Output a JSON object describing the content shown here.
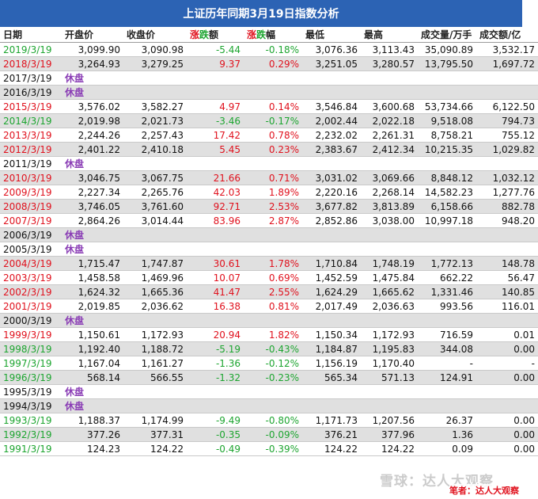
{
  "title": "上证历年同期3月19日指数分析",
  "columns": [
    "日期",
    "开盘价",
    "收盘价",
    "涨跌额",
    "涨跌幅",
    "最低",
    "最高",
    "成交量/万手",
    "成交额/亿"
  ],
  "suspend_label": "休盘",
  "author": "笔者：达人大观察",
  "watermark": "雪球：达人大观察",
  "rows": [
    {
      "date": "2019/3/19",
      "open": "3,099.90",
      "close": "3,090.98",
      "chg": "-5.44",
      "pct": "-0.18%",
      "low": "3,076.36",
      "high": "3,113.43",
      "vol": "35,090.89",
      "amt": "3,532.17",
      "dir": "down"
    },
    {
      "date": "2018/3/19",
      "open": "3,264.93",
      "close": "3,279.25",
      "chg": "9.37",
      "pct": "0.29%",
      "low": "3,251.05",
      "high": "3,280.57",
      "vol": "13,795.50",
      "amt": "1,697.72",
      "dir": "up"
    },
    {
      "date": "2017/3/19",
      "suspend": true
    },
    {
      "date": "2016/3/19",
      "suspend": true
    },
    {
      "date": "2015/3/19",
      "open": "3,576.02",
      "close": "3,582.27",
      "chg": "4.97",
      "pct": "0.14%",
      "low": "3,546.84",
      "high": "3,600.68",
      "vol": "53,734.66",
      "amt": "6,122.50",
      "dir": "up"
    },
    {
      "date": "2014/3/19",
      "open": "2,019.98",
      "close": "2,021.73",
      "chg": "-3.46",
      "pct": "-0.17%",
      "low": "2,002.44",
      "high": "2,022.18",
      "vol": "9,518.08",
      "amt": "794.73",
      "dir": "down"
    },
    {
      "date": "2013/3/19",
      "open": "2,244.26",
      "close": "2,257.43",
      "chg": "17.42",
      "pct": "0.78%",
      "low": "2,232.02",
      "high": "2,261.31",
      "vol": "8,758.21",
      "amt": "755.12",
      "dir": "up"
    },
    {
      "date": "2012/3/19",
      "open": "2,401.22",
      "close": "2,410.18",
      "chg": "5.45",
      "pct": "0.23%",
      "low": "2,383.67",
      "high": "2,412.34",
      "vol": "10,215.35",
      "amt": "1,029.82",
      "dir": "up"
    },
    {
      "date": "2011/3/19",
      "suspend": true
    },
    {
      "date": "2010/3/19",
      "open": "3,046.75",
      "close": "3,067.75",
      "chg": "21.66",
      "pct": "0.71%",
      "low": "3,031.02",
      "high": "3,069.66",
      "vol": "8,848.12",
      "amt": "1,032.12",
      "dir": "up"
    },
    {
      "date": "2009/3/19",
      "open": "2,227.34",
      "close": "2,265.76",
      "chg": "42.03",
      "pct": "1.89%",
      "low": "2,220.16",
      "high": "2,268.14",
      "vol": "14,582.23",
      "amt": "1,277.76",
      "dir": "up"
    },
    {
      "date": "2008/3/19",
      "open": "3,746.05",
      "close": "3,761.60",
      "chg": "92.71",
      "pct": "2.53%",
      "low": "3,677.82",
      "high": "3,813.89",
      "vol": "6,158.66",
      "amt": "882.78",
      "dir": "up"
    },
    {
      "date": "2007/3/19",
      "open": "2,864.26",
      "close": "3,014.44",
      "chg": "83.96",
      "pct": "2.87%",
      "low": "2,852.86",
      "high": "3,038.00",
      "vol": "10,997.18",
      "amt": "948.20",
      "dir": "up"
    },
    {
      "date": "2006/3/19",
      "suspend": true
    },
    {
      "date": "2005/3/19",
      "suspend": true
    },
    {
      "date": "2004/3/19",
      "open": "1,715.47",
      "close": "1,747.87",
      "chg": "30.61",
      "pct": "1.78%",
      "low": "1,710.84",
      "high": "1,748.19",
      "vol": "1,772.13",
      "amt": "148.78",
      "dir": "up"
    },
    {
      "date": "2003/3/19",
      "open": "1,458.58",
      "close": "1,469.96",
      "chg": "10.07",
      "pct": "0.69%",
      "low": "1,452.59",
      "high": "1,475.84",
      "vol": "662.22",
      "amt": "56.47",
      "dir": "up"
    },
    {
      "date": "2002/3/19",
      "open": "1,624.32",
      "close": "1,665.36",
      "chg": "41.47",
      "pct": "2.55%",
      "low": "1,624.29",
      "high": "1,665.62",
      "vol": "1,331.46",
      "amt": "140.85",
      "dir": "up"
    },
    {
      "date": "2001/3/19",
      "open": "2,019.85",
      "close": "2,036.62",
      "chg": "16.38",
      "pct": "0.81%",
      "low": "2,017.49",
      "high": "2,036.63",
      "vol": "993.56",
      "amt": "116.01",
      "dir": "up"
    },
    {
      "date": "2000/3/19",
      "suspend": true
    },
    {
      "date": "1999/3/19",
      "open": "1,150.61",
      "close": "1,172.93",
      "chg": "20.94",
      "pct": "1.82%",
      "low": "1,150.34",
      "high": "1,172.93",
      "vol": "716.59",
      "amt": "0.01",
      "dir": "up"
    },
    {
      "date": "1998/3/19",
      "open": "1,192.40",
      "close": "1,188.72",
      "chg": "-5.19",
      "pct": "-0.43%",
      "low": "1,184.87",
      "high": "1,195.83",
      "vol": "344.08",
      "amt": "0.00",
      "dir": "down"
    },
    {
      "date": "1997/3/19",
      "open": "1,167.04",
      "close": "1,161.27",
      "chg": "-1.36",
      "pct": "-0.12%",
      "low": "1,156.19",
      "high": "1,170.40",
      "vol": "-",
      "amt": "-",
      "dir": "down"
    },
    {
      "date": "1996/3/19",
      "open": "568.14",
      "close": "566.55",
      "chg": "-1.32",
      "pct": "-0.23%",
      "low": "565.34",
      "high": "571.13",
      "vol": "124.91",
      "amt": "0.00",
      "dir": "down"
    },
    {
      "date": "1995/3/19",
      "suspend": true
    },
    {
      "date": "1994/3/19",
      "suspend": true
    },
    {
      "date": "1993/3/19",
      "open": "1,188.37",
      "close": "1,174.99",
      "chg": "-9.49",
      "pct": "-0.80%",
      "low": "1,171.73",
      "high": "1,207.56",
      "vol": "26.37",
      "amt": "0.00",
      "dir": "down"
    },
    {
      "date": "1992/3/19",
      "open": "377.26",
      "close": "377.31",
      "chg": "-0.35",
      "pct": "-0.09%",
      "low": "376.21",
      "high": "377.96",
      "vol": "1.36",
      "amt": "0.00",
      "dir": "down"
    },
    {
      "date": "1991/3/19",
      "open": "124.23",
      "close": "124.22",
      "chg": "-0.49",
      "pct": "-0.39%",
      "low": "124.22",
      "high": "124.22",
      "vol": "0.09",
      "amt": "0.00",
      "dir": "down"
    }
  ]
}
